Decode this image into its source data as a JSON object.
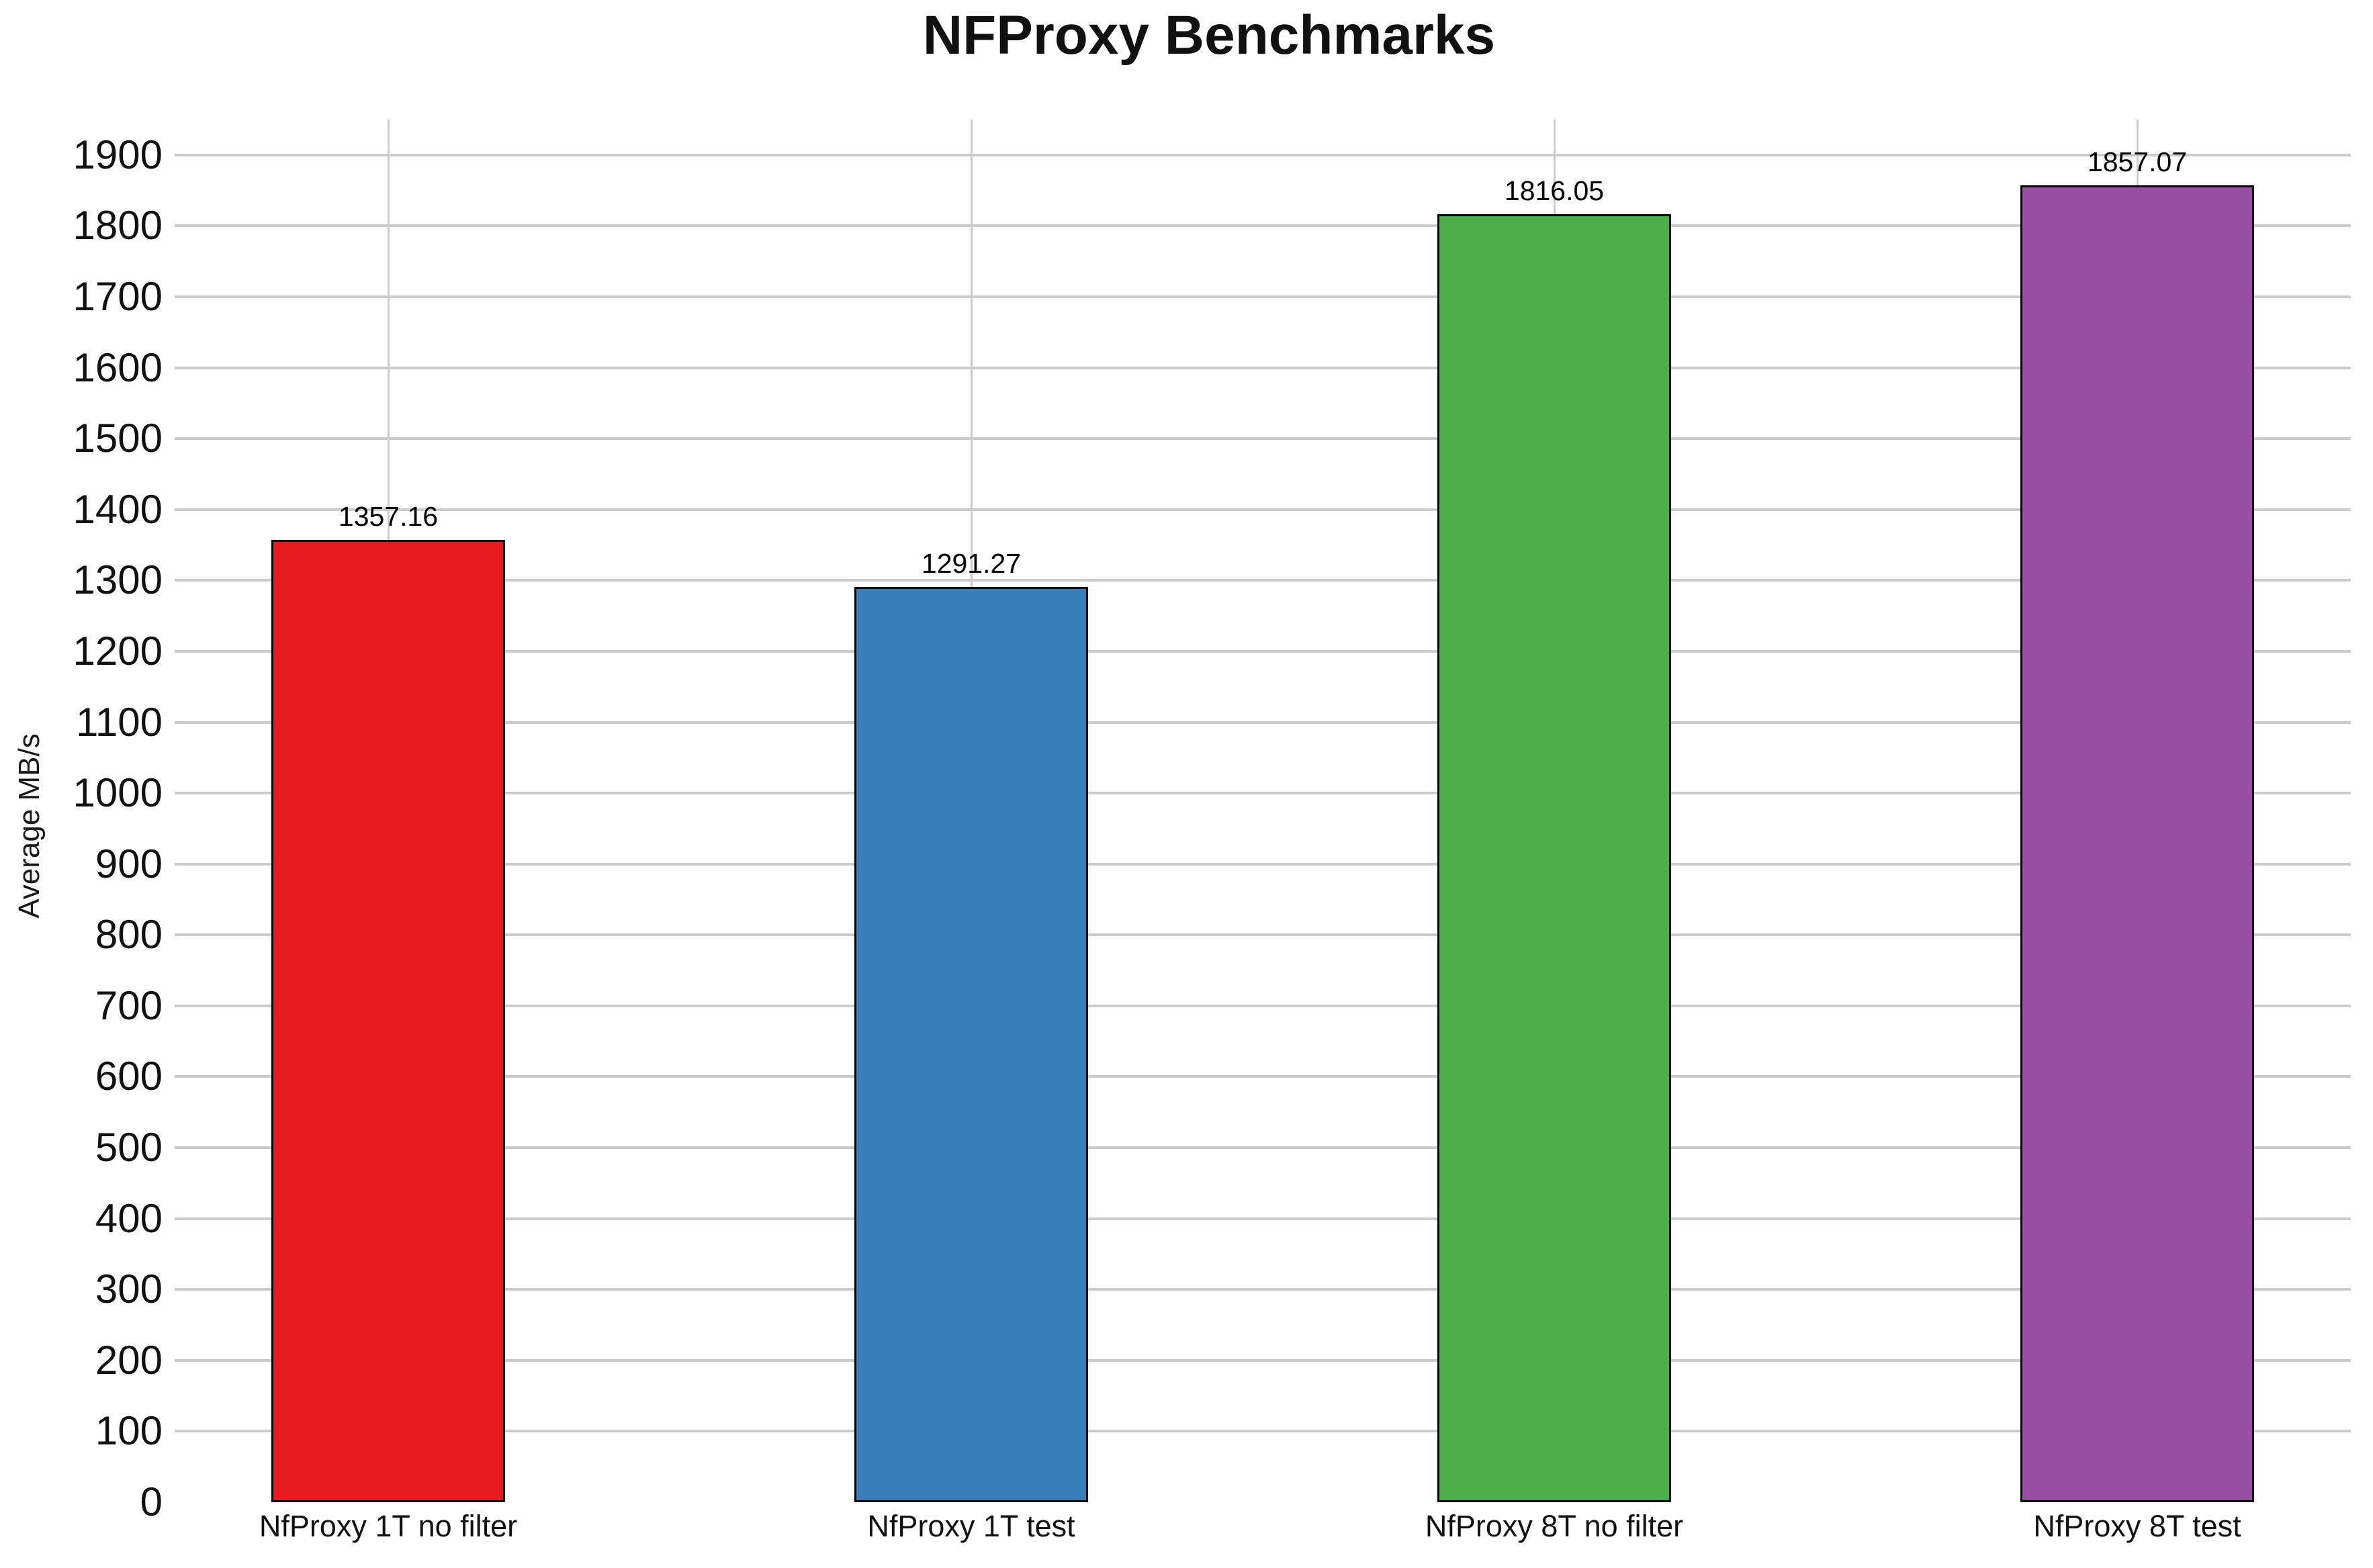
{
  "chart_data": {
    "type": "bar",
    "title": "NFProxy Benchmarks",
    "xlabel": "",
    "ylabel": "Average MB/s",
    "categories": [
      "NfProxy 1T no filter",
      "NfProxy 1T test",
      "NfProxy 8T no filter",
      "NfProxy 8T test"
    ],
    "values": [
      1357.16,
      1291.27,
      1816.05,
      1857.07
    ],
    "bar_labels": [
      "1357.16",
      "1291.27",
      "1816.05",
      "1857.07"
    ],
    "colors": [
      "#e41a1c",
      "#377eb8",
      "#4daf4a",
      "#984ea3"
    ],
    "bar_border_color": "#000000",
    "ylim": [
      0,
      1950
    ],
    "yticks": [
      0,
      100,
      200,
      300,
      400,
      500,
      600,
      700,
      800,
      900,
      1000,
      1100,
      1200,
      1300,
      1400,
      1500,
      1600,
      1700,
      1800,
      1900
    ],
    "grid": true,
    "grid_horizontal": true,
    "grid_vertical": true,
    "grid_color": "#cccccc",
    "background_color": "#ffffff",
    "legend": "none"
  }
}
